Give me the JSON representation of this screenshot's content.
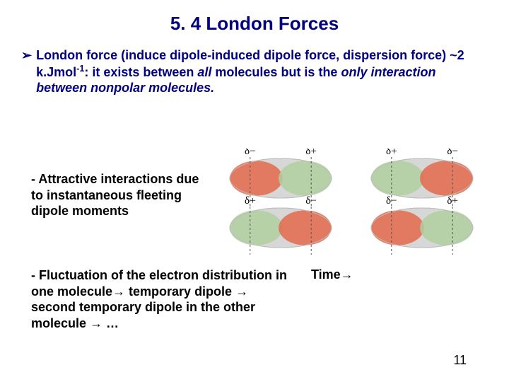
{
  "title": "5. 4 London Forces",
  "bullet": {
    "marker": "➢",
    "pre": "London force (induce dipole-induced dipole force, dispersion force) ~2 k.Jmol",
    "sup": "-1",
    "mid": ": it exists between ",
    "all": "all",
    "post1": " molecules but is the ",
    "only": "only interaction between nonpolar molecules",
    "end": "."
  },
  "mid_text": "- Attractive interactions due to instantaneous fleeting dipole moments",
  "lower_text": "- Fluctuation of the electron distribution in one molecule→ temporary dipole → second temporary dipole in the other molecule → …",
  "time_label": "Time→",
  "page_number": "11",
  "diagram": {
    "bg": "#ffffff",
    "ellipse_fill": "#d7d7d7",
    "ellipse_edge": "#bcbcbc",
    "red_lobe": "#e46a4e",
    "green_lobe": "#b0cfa0",
    "label_color": "#000000",
    "dash_color": "#555555",
    "left_pair": {
      "top": {
        "left_charge": "-",
        "right_charge": "+",
        "red_side": "left",
        "green_side": "right"
      },
      "bottom": {
        "left_charge": "+",
        "right_charge": "-",
        "red_side": "right",
        "green_side": "left"
      }
    },
    "right_pair": {
      "top": {
        "left_charge": "+",
        "right_charge": "-",
        "red_side": "right",
        "green_side": "left"
      },
      "bottom": {
        "left_charge": "-",
        "right_charge": "+",
        "red_side": "left",
        "green_side": "right"
      }
    }
  }
}
